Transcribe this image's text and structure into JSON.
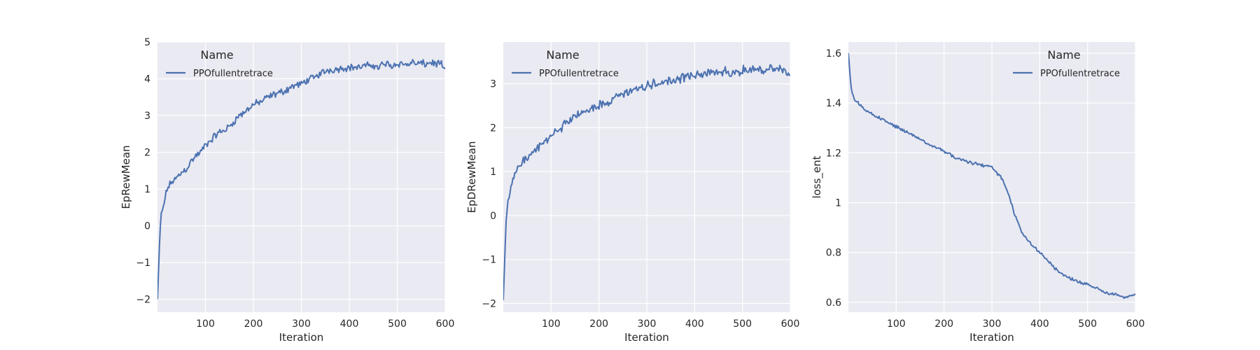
{
  "figure": {
    "background": "#ffffff",
    "panel_bg": "#eaeaf2",
    "grid_color": "#ffffff",
    "line_color": "#4c72b0"
  },
  "chart_data": [
    {
      "type": "line",
      "xlabel": "Iteration",
      "ylabel": "EpRewMean",
      "xlim": [
        0,
        600
      ],
      "ylim": [
        -2.35,
        5.0
      ],
      "xticks": [
        100,
        200,
        300,
        400,
        500,
        600
      ],
      "yticks": [
        -2,
        -1,
        0,
        1,
        2,
        3,
        4,
        5
      ],
      "grid": true,
      "legend": {
        "title": "Name",
        "placement": "top-left",
        "entries": [
          "PPOfullentretrace"
        ]
      },
      "series": [
        {
          "name": "PPOfullentretrace",
          "x": [
            0,
            2,
            4,
            6,
            8,
            10,
            15,
            20,
            25,
            30,
            40,
            50,
            60,
            70,
            80,
            90,
            100,
            110,
            120,
            130,
            140,
            150,
            160,
            170,
            180,
            190,
            200,
            210,
            220,
            230,
            240,
            250,
            260,
            270,
            280,
            290,
            300,
            310,
            320,
            330,
            340,
            350,
            360,
            370,
            380,
            390,
            400,
            410,
            420,
            430,
            440,
            450,
            460,
            470,
            480,
            490,
            500,
            510,
            520,
            530,
            540,
            550,
            560,
            570,
            580,
            590,
            600
          ],
          "y": [
            -2.0,
            -1.3,
            -0.6,
            0.0,
            0.3,
            0.4,
            0.7,
            1.0,
            1.1,
            1.2,
            1.3,
            1.45,
            1.55,
            1.75,
            1.9,
            2.0,
            2.2,
            2.3,
            2.45,
            2.55,
            2.6,
            2.7,
            2.85,
            3.0,
            3.05,
            3.2,
            3.3,
            3.35,
            3.4,
            3.5,
            3.55,
            3.6,
            3.65,
            3.7,
            3.8,
            3.82,
            3.85,
            3.95,
            4.0,
            4.05,
            4.15,
            4.2,
            4.25,
            4.25,
            4.28,
            4.3,
            4.3,
            4.32,
            4.3,
            4.35,
            4.35,
            4.38,
            4.3,
            4.4,
            4.4,
            4.35,
            4.42,
            4.4,
            4.38,
            4.45,
            4.4,
            4.42,
            4.4,
            4.45,
            4.4,
            4.42,
            4.2
          ],
          "noise": 0.12
        }
      ]
    },
    {
      "type": "line",
      "xlabel": "Iteration",
      "ylabel": "EpDRewMean",
      "xlim": [
        0,
        600
      ],
      "ylim": [
        -2.2,
        3.95
      ],
      "xticks": [
        100,
        200,
        300,
        400,
        500,
        600
      ],
      "yticks": [
        -2,
        -1,
        0,
        1,
        2,
        3
      ],
      "grid": true,
      "legend": {
        "title": "Name",
        "placement": "top-left",
        "entries": [
          "PPOfullentretrace"
        ]
      },
      "series": [
        {
          "name": "PPOfullentretrace",
          "x": [
            0,
            2,
            4,
            6,
            8,
            10,
            15,
            20,
            25,
            30,
            40,
            50,
            60,
            70,
            80,
            90,
            100,
            110,
            120,
            130,
            140,
            150,
            160,
            170,
            180,
            190,
            200,
            210,
            220,
            230,
            240,
            250,
            260,
            270,
            280,
            290,
            300,
            310,
            320,
            330,
            340,
            350,
            360,
            370,
            380,
            390,
            400,
            410,
            420,
            430,
            440,
            450,
            460,
            470,
            480,
            490,
            500,
            510,
            520,
            530,
            540,
            550,
            560,
            570,
            580,
            590,
            600
          ],
          "y": [
            -1.95,
            -1.3,
            -0.7,
            -0.1,
            0.2,
            0.35,
            0.55,
            0.8,
            0.95,
            1.05,
            1.2,
            1.3,
            1.4,
            1.5,
            1.6,
            1.7,
            1.8,
            1.9,
            2.0,
            2.1,
            2.15,
            2.25,
            2.3,
            2.35,
            2.4,
            2.45,
            2.5,
            2.55,
            2.6,
            2.65,
            2.7,
            2.75,
            2.8,
            2.85,
            2.85,
            2.9,
            2.95,
            2.97,
            3.0,
            3.0,
            3.05,
            3.1,
            3.1,
            3.12,
            3.15,
            3.15,
            3.2,
            3.2,
            3.22,
            3.22,
            3.25,
            3.25,
            3.27,
            3.27,
            3.3,
            3.3,
            3.3,
            3.3,
            3.32,
            3.32,
            3.33,
            3.33,
            3.35,
            3.35,
            3.35,
            3.3,
            3.1
          ],
          "noise": 0.13
        }
      ]
    },
    {
      "type": "line",
      "xlabel": "Iteration",
      "ylabel": "loss_ent",
      "xlim": [
        0,
        600
      ],
      "ylim": [
        0.56,
        1.645
      ],
      "xticks": [
        100,
        200,
        300,
        400,
        500,
        600
      ],
      "yticks": [
        0.6,
        0.8,
        1.0,
        1.2,
        1.4,
        1.6
      ],
      "grid": true,
      "legend": {
        "title": "Name",
        "placement": "top-right",
        "entries": [
          "PPOfullentretrace"
        ]
      },
      "series": [
        {
          "name": "PPOfullentretrace",
          "x": [
            0,
            2,
            4,
            6,
            8,
            10,
            15,
            20,
            25,
            30,
            40,
            50,
            60,
            70,
            80,
            90,
            100,
            110,
            120,
            130,
            140,
            150,
            160,
            170,
            180,
            190,
            200,
            210,
            220,
            230,
            240,
            250,
            260,
            270,
            280,
            290,
            300,
            310,
            320,
            330,
            340,
            350,
            360,
            370,
            380,
            390,
            400,
            410,
            420,
            430,
            440,
            450,
            460,
            470,
            480,
            490,
            500,
            510,
            520,
            530,
            540,
            550,
            560,
            570,
            580,
            590,
            600
          ],
          "y": [
            1.6,
            1.55,
            1.5,
            1.46,
            1.44,
            1.43,
            1.41,
            1.4,
            1.39,
            1.38,
            1.365,
            1.355,
            1.345,
            1.335,
            1.325,
            1.315,
            1.305,
            1.295,
            1.285,
            1.275,
            1.265,
            1.255,
            1.245,
            1.235,
            1.225,
            1.215,
            1.205,
            1.195,
            1.185,
            1.175,
            1.17,
            1.165,
            1.16,
            1.155,
            1.15,
            1.145,
            1.14,
            1.12,
            1.1,
            1.06,
            1.0,
            0.94,
            0.89,
            0.86,
            0.84,
            0.82,
            0.8,
            0.78,
            0.76,
            0.74,
            0.72,
            0.71,
            0.7,
            0.69,
            0.685,
            0.675,
            0.67,
            0.66,
            0.655,
            0.645,
            0.64,
            0.635,
            0.63,
            0.625,
            0.62,
            0.625,
            0.63
          ],
          "noise": 0.008
        }
      ]
    }
  ]
}
